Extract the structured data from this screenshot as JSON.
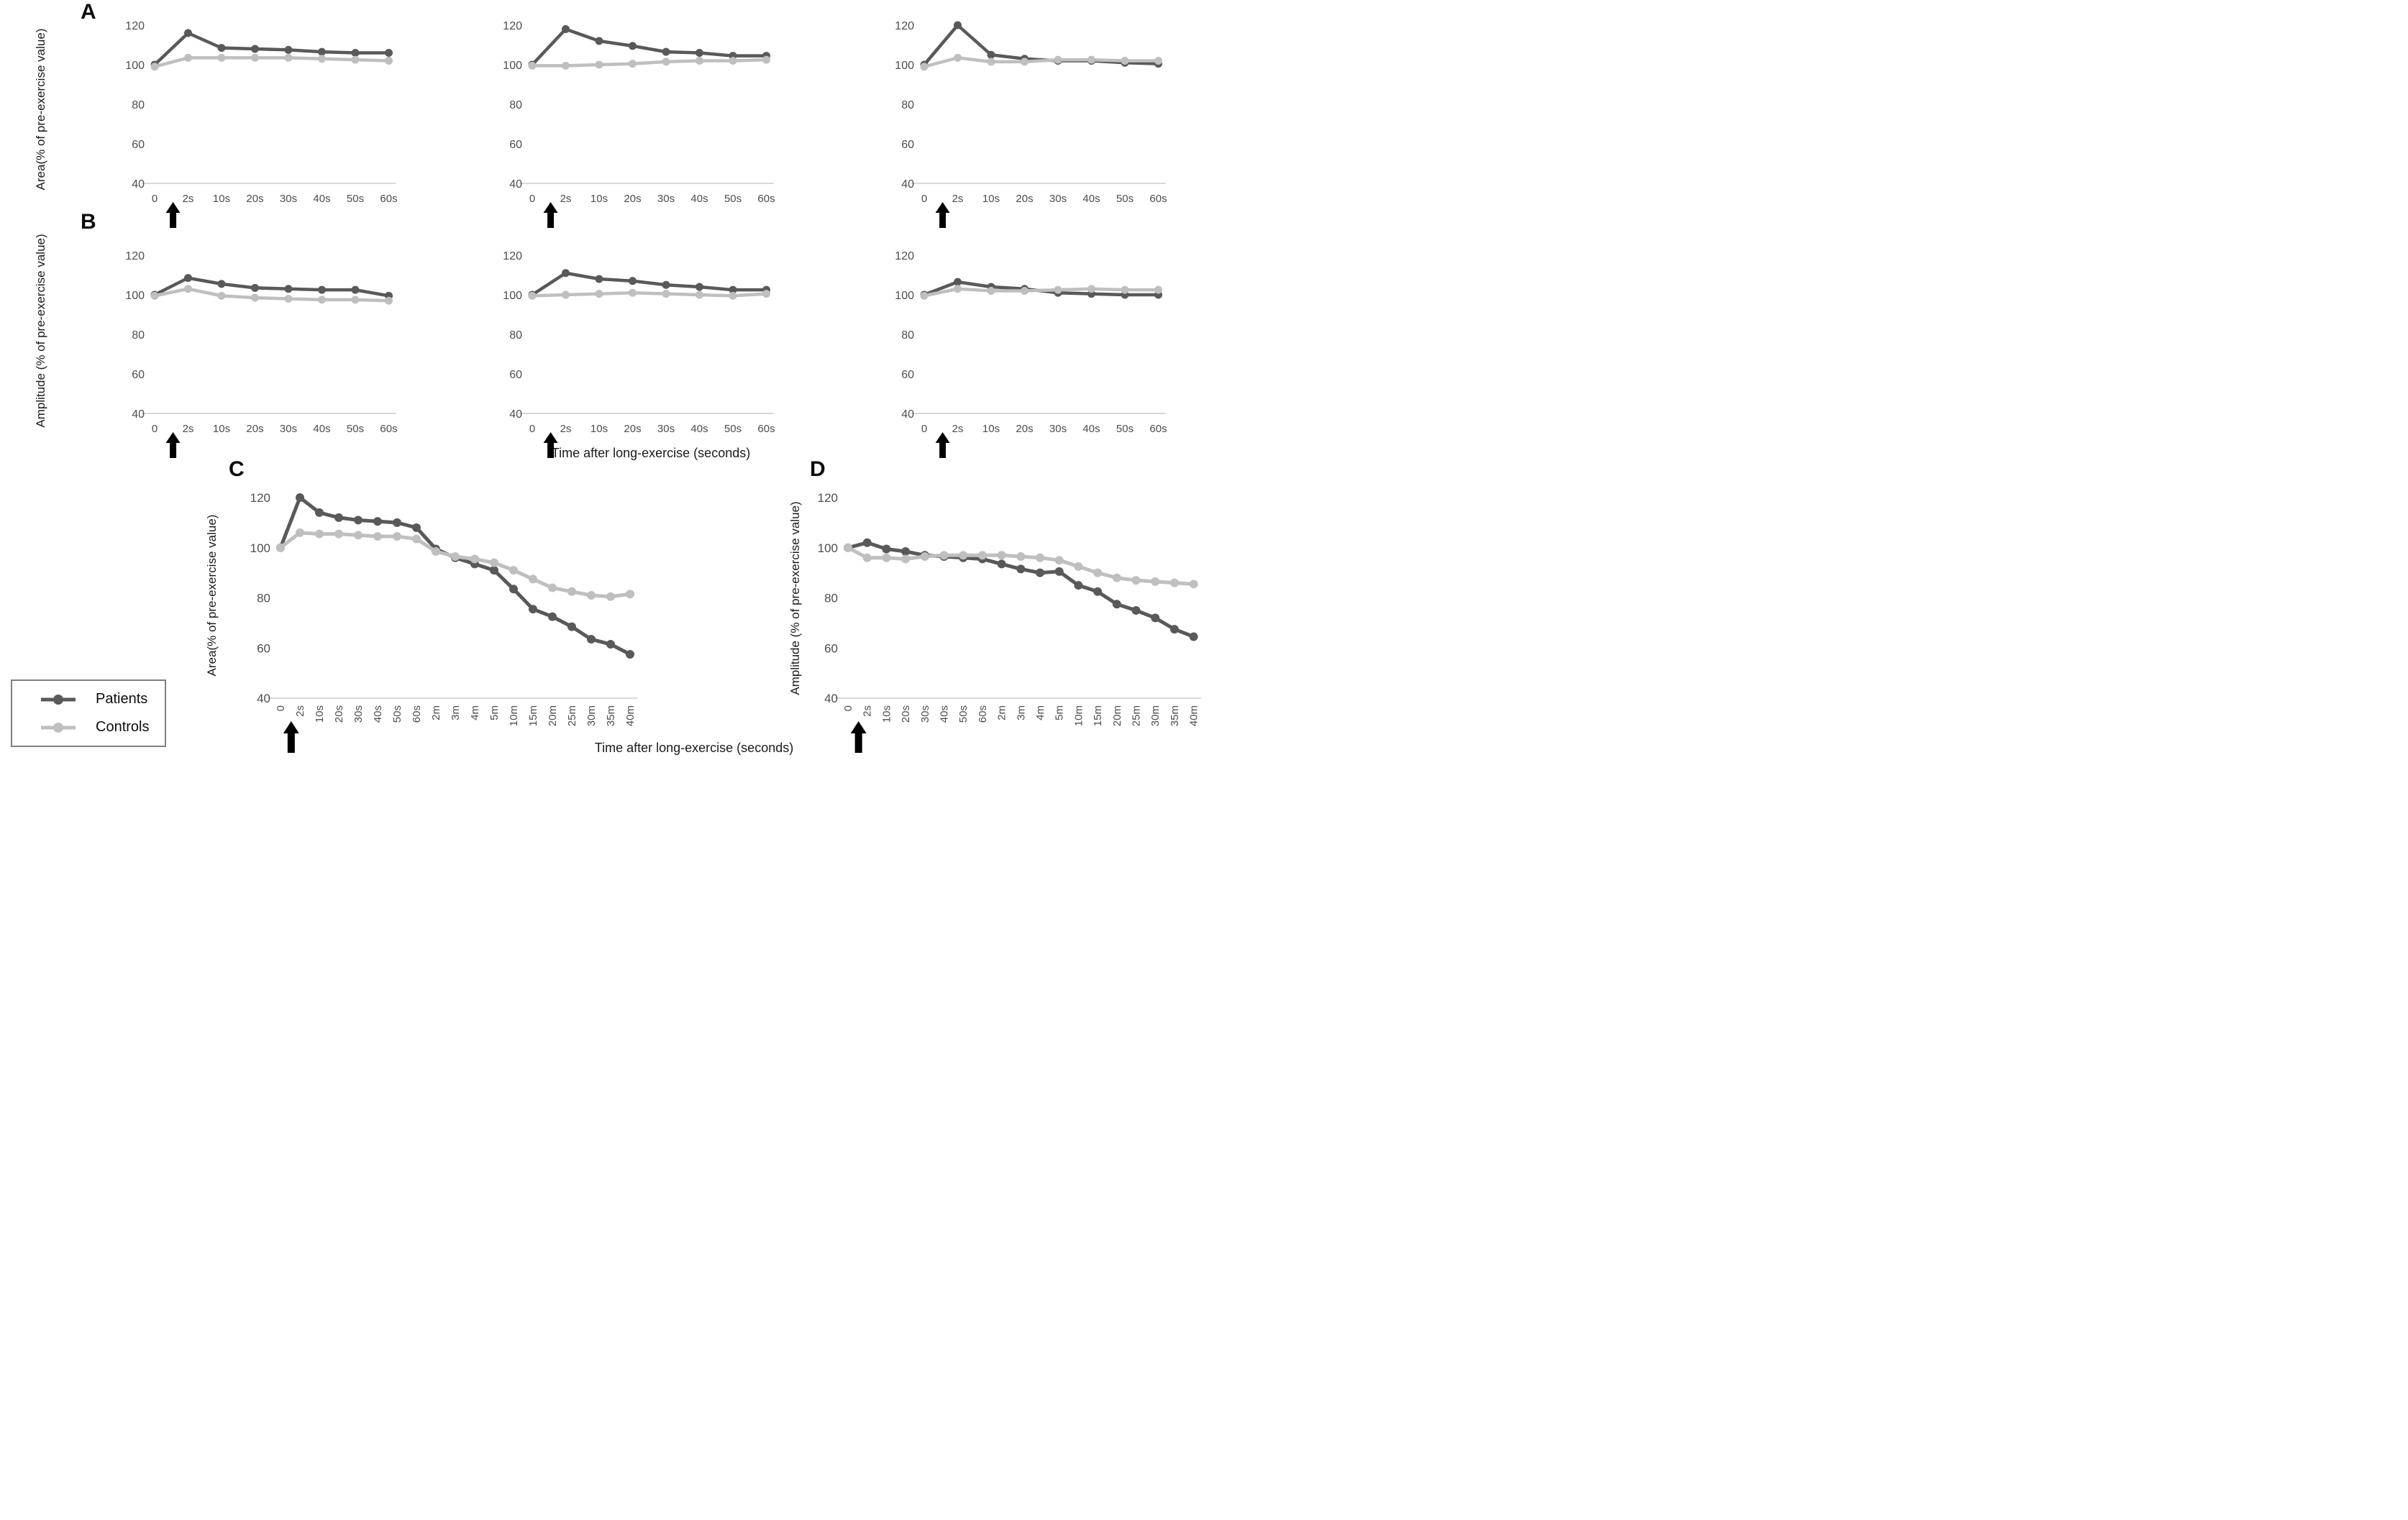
{
  "figure": {
    "panel_a_letter": "A",
    "panel_b_letter": "B",
    "panel_c_letter": "C",
    "panel_d_letter": "D",
    "x_axis_label_middle": "Time after long-exercise (seconds)",
    "x_axis_label_bottom": "Time after long-exercise (seconds)",
    "y_axis_label_area": "Area(% of pre-exercise value)",
    "y_axis_label_amplitude": "Amplitude (% of pre-exercise value)"
  },
  "colors": {
    "patients": "#595959",
    "controls": "#bfbfbf",
    "axis_line": "#d9d9d9",
    "tick_text": "#4d4d4d",
    "arrow": "#000000"
  },
  "legend": {
    "items": [
      {
        "label": "Patients",
        "series_key": "patients"
      },
      {
        "label": "Controls",
        "series_key": "controls"
      }
    ]
  },
  "chart_data": [
    {
      "id": "a1",
      "type": "line",
      "panel": "A",
      "position": "left",
      "ylabel": "Area(% of pre-exercise value)",
      "categories": [
        "0",
        "2s",
        "10s",
        "20s",
        "30s",
        "40s",
        "50s",
        "60s"
      ],
      "yticks": [
        120,
        100,
        80,
        60,
        40
      ],
      "ylim": [
        40,
        128
      ],
      "grid": false,
      "stimulus_arrow": true,
      "series": [
        {
          "name": "Patients",
          "values": [
            100,
            116,
            108.5,
            108,
            107.5,
            106.5,
            106,
            106
          ]
        },
        {
          "name": "Controls",
          "values": [
            99,
            103.5,
            103.5,
            103.5,
            103.5,
            103,
            102.5,
            102
          ]
        }
      ]
    },
    {
      "id": "a2",
      "type": "line",
      "panel": "A",
      "position": "middle",
      "ylabel": "Area(% of pre-exercise value)",
      "categories": [
        "0",
        "2s",
        "10s",
        "20s",
        "30s",
        "40s",
        "50s",
        "60s"
      ],
      "yticks": [
        120,
        100,
        80,
        60,
        40
      ],
      "ylim": [
        40,
        128
      ],
      "grid": false,
      "stimulus_arrow": true,
      "series": [
        {
          "name": "Patients",
          "values": [
            100,
            118,
            112,
            109.5,
            106.5,
            106,
            104.5,
            104.5
          ]
        },
        {
          "name": "Controls",
          "values": [
            99.5,
            99.5,
            100,
            100.5,
            101.5,
            102,
            102,
            102.5
          ]
        }
      ]
    },
    {
      "id": "a3",
      "type": "line",
      "panel": "A",
      "position": "right",
      "ylabel": "Area(% of pre-exercise value)",
      "categories": [
        "0",
        "2s",
        "10s",
        "20s",
        "30s",
        "40s",
        "50s",
        "60s"
      ],
      "yticks": [
        120,
        100,
        80,
        60,
        40
      ],
      "ylim": [
        40,
        128
      ],
      "grid": false,
      "stimulus_arrow": true,
      "series": [
        {
          "name": "Patients",
          "values": [
            100,
            120,
            105,
            103,
            102,
            102,
            101,
            100.5
          ]
        },
        {
          "name": "Controls",
          "values": [
            99,
            103.5,
            101.5,
            101.5,
            102.5,
            102.5,
            102,
            102
          ]
        }
      ]
    },
    {
      "id": "b1",
      "type": "line",
      "panel": "B",
      "position": "left",
      "ylabel": "Amplitude (% of pre-exercise value)",
      "categories": [
        "0",
        "2s",
        "10s",
        "20s",
        "30s",
        "40s",
        "50s",
        "60s"
      ],
      "yticks": [
        120,
        100,
        80,
        60,
        40
      ],
      "ylim": [
        40,
        128
      ],
      "grid": false,
      "stimulus_arrow": true,
      "series": [
        {
          "name": "Patients",
          "values": [
            100,
            108.5,
            105.5,
            103.5,
            103,
            102.5,
            102.5,
            99.5
          ]
        },
        {
          "name": "Controls",
          "values": [
            99.5,
            103,
            99.5,
            98.5,
            98,
            97.5,
            97.5,
            97
          ]
        }
      ]
    },
    {
      "id": "b2",
      "type": "line",
      "panel": "B",
      "position": "middle",
      "ylabel": "Amplitude (% of pre-exercise value)",
      "categories": [
        "0",
        "2s",
        "10s",
        "20s",
        "30s",
        "40s",
        "50s",
        "60s"
      ],
      "yticks": [
        120,
        100,
        80,
        60,
        40
      ],
      "ylim": [
        40,
        128
      ],
      "grid": false,
      "stimulus_arrow": true,
      "series": [
        {
          "name": "Patients",
          "values": [
            100,
            111,
            108,
            107,
            105,
            104,
            102.5,
            102.5
          ]
        },
        {
          "name": "Controls",
          "values": [
            99.5,
            100,
            100.5,
            101,
            100.5,
            100,
            99.5,
            100.5
          ]
        }
      ]
    },
    {
      "id": "b3",
      "type": "line",
      "panel": "B",
      "position": "right",
      "ylabel": "Amplitude (% of pre-exercise value)",
      "categories": [
        "0",
        "2s",
        "10s",
        "20s",
        "30s",
        "40s",
        "50s",
        "60s"
      ],
      "yticks": [
        120,
        100,
        80,
        60,
        40
      ],
      "ylim": [
        40,
        128
      ],
      "grid": false,
      "stimulus_arrow": true,
      "series": [
        {
          "name": "Patients",
          "values": [
            100,
            106.5,
            104,
            103,
            101,
            100.5,
            100,
            100
          ]
        },
        {
          "name": "Controls",
          "values": [
            99.5,
            103,
            102,
            102,
            102.5,
            103,
            102.5,
            102.5
          ]
        }
      ]
    },
    {
      "id": "c",
      "type": "line",
      "panel": "C",
      "position": "bottom-left",
      "ylabel": "Area(% of pre-exercise value)",
      "categories": [
        "0",
        "2s",
        "10s",
        "20s",
        "30s",
        "40s",
        "50s",
        "60s",
        "2m",
        "3m",
        "4m",
        "5m",
        "10m",
        "15m",
        "20m",
        "25m",
        "30m",
        "35m",
        "40m"
      ],
      "yticks": [
        120,
        100,
        80,
        60,
        40
      ],
      "ylim": [
        40,
        128
      ],
      "grid": false,
      "stimulus_arrow": true,
      "x_labels_rotated": true,
      "series": [
        {
          "name": "Patients",
          "values": [
            100,
            120,
            114,
            112,
            111,
            110.5,
            110,
            108,
            99.5,
            96,
            93.5,
            91,
            83.5,
            75.5,
            72.5,
            68.5,
            63.5,
            61.5,
            57.5
          ]
        },
        {
          "name": "Controls",
          "values": [
            100,
            106,
            105.5,
            105.5,
            105,
            104.5,
            104.5,
            103.5,
            98.5,
            96.5,
            95.5,
            94,
            91,
            87.5,
            84,
            82.5,
            81,
            80.5,
            81.5
          ]
        }
      ]
    },
    {
      "id": "d",
      "type": "line",
      "panel": "D",
      "position": "bottom-right",
      "ylabel": "Amplitude (% of pre-exercise value)",
      "categories": [
        "0",
        "2s",
        "10s",
        "20s",
        "30s",
        "40s",
        "50s",
        "60s",
        "2m",
        "3m",
        "4m",
        "5m",
        "10m",
        "15m",
        "20m",
        "25m",
        "30m",
        "35m",
        "40m"
      ],
      "yticks": [
        120,
        100,
        80,
        60,
        40
      ],
      "ylim": [
        40,
        128
      ],
      "grid": false,
      "stimulus_arrow": true,
      "x_labels_rotated": true,
      "series": [
        {
          "name": "Patients",
          "values": [
            100,
            102,
            99.5,
            98.5,
            97,
            96.5,
            96,
            95.5,
            93.5,
            91.5,
            90,
            90.5,
            85,
            82.5,
            77.5,
            75,
            72,
            67.5,
            64.5
          ]
        },
        {
          "name": "Controls",
          "values": [
            100,
            96,
            96,
            95.5,
            96.5,
            97,
            97,
            97,
            97,
            96.5,
            96,
            95,
            92.5,
            90,
            88,
            87,
            86.5,
            86,
            85.5
          ]
        }
      ]
    }
  ]
}
